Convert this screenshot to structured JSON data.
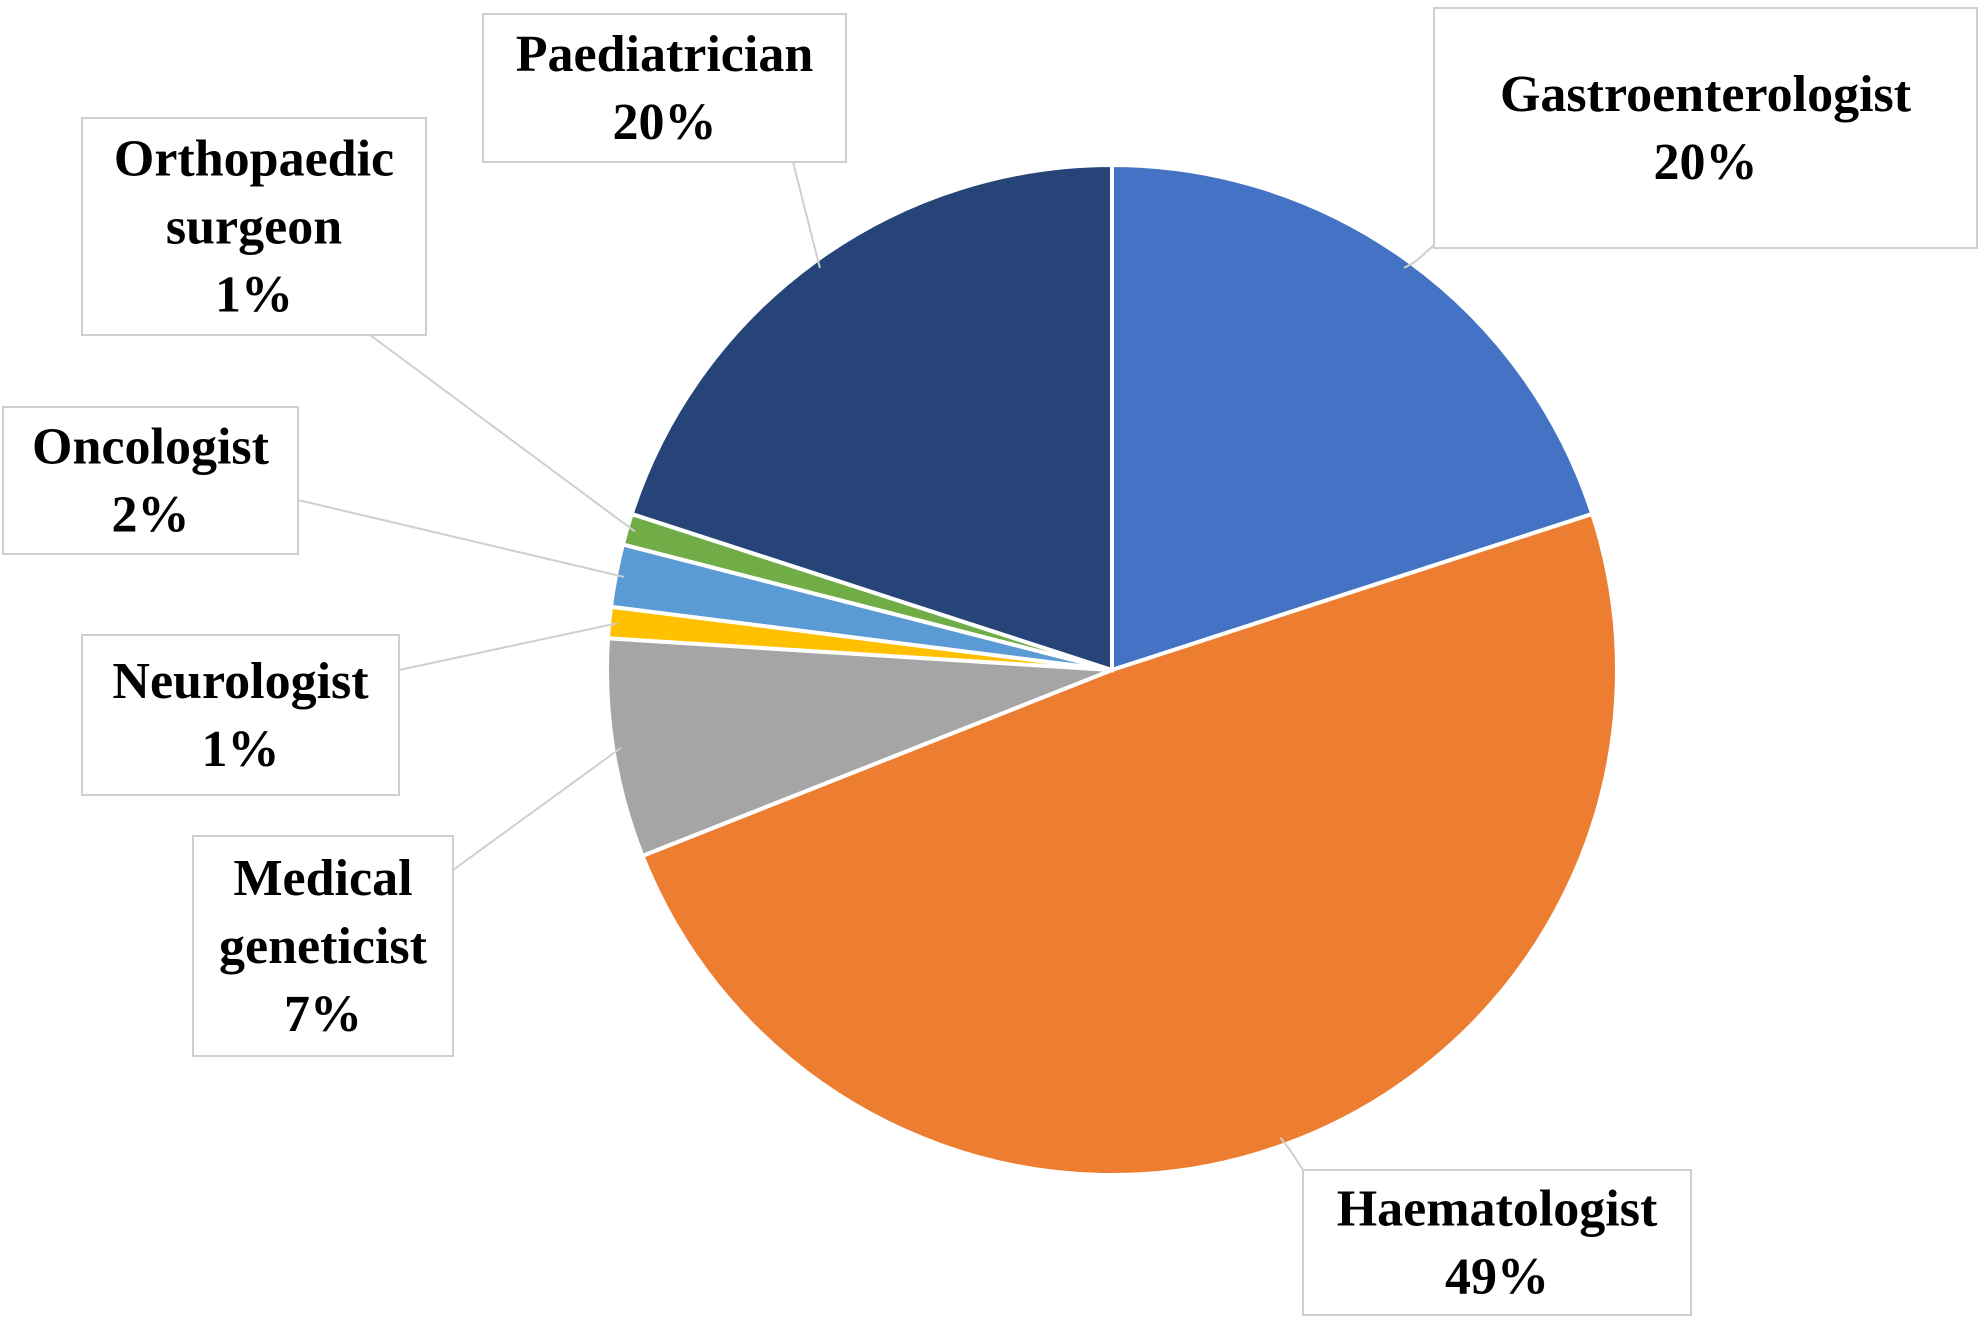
{
  "chart_data": {
    "type": "pie",
    "title": "",
    "unit": "%",
    "slices": [
      {
        "label_lines": [
          "Gastroenterologist"
        ],
        "value": 20,
        "value_label": "20%",
        "color": "#4472C4"
      },
      {
        "label_lines": [
          "Haematologist"
        ],
        "value": 49,
        "value_label": "49%",
        "color": "#ED7D31"
      },
      {
        "label_lines": [
          "Medical",
          "geneticist"
        ],
        "value": 7,
        "value_label": "7%",
        "color": "#A5A5A5"
      },
      {
        "label_lines": [
          "Neurologist"
        ],
        "value": 1,
        "value_label": "1%",
        "color": "#FFC000"
      },
      {
        "label_lines": [
          "Oncologist"
        ],
        "value": 2,
        "value_label": "2%",
        "color": "#5B9BD5"
      },
      {
        "label_lines": [
          "Orthopaedic",
          "surgeon"
        ],
        "value": 1,
        "value_label": "1%",
        "color": "#70AD47"
      },
      {
        "label_lines": [
          "Paediatrician"
        ],
        "value": 20,
        "value_label": "20%",
        "color": "#264478"
      }
    ],
    "legend": "none"
  }
}
